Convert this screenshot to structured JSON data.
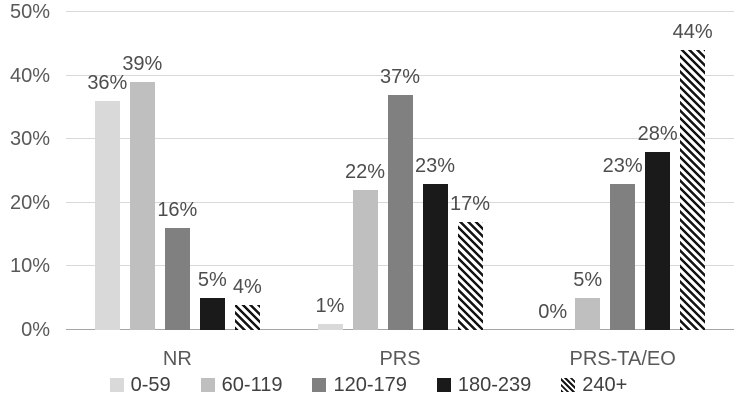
{
  "chart_data": {
    "type": "bar",
    "title": "",
    "categories": [
      "NR",
      "PRS",
      "PRS-TA/EO"
    ],
    "series": [
      {
        "name": "0-59",
        "color": "#d9d9d9",
        "pattern": "solid",
        "values": [
          36,
          1,
          0
        ]
      },
      {
        "name": "60-119",
        "color": "#bfbfbf",
        "pattern": "solid",
        "values": [
          39,
          22,
          5
        ]
      },
      {
        "name": "120-179",
        "color": "#808080",
        "pattern": "solid",
        "values": [
          16,
          37,
          23
        ]
      },
      {
        "name": "180-239",
        "color": "#1a1a1a",
        "pattern": "solid",
        "values": [
          5,
          23,
          28
        ]
      },
      {
        "name": "240+",
        "color": "#141414",
        "pattern": "diagonal-stripe",
        "values": [
          4,
          17,
          44
        ]
      }
    ],
    "data_labels": true,
    "data_label_suffix": "%",
    "xlabel": "",
    "ylabel": "",
    "ylim": [
      0,
      50
    ],
    "yticks": [
      "0%",
      "10%",
      "20%",
      "30%",
      "40%",
      "50%"
    ],
    "grid": true,
    "legend_position": "bottom",
    "colors": {
      "gridline": "#d9d9d9",
      "axis_line": "#a6a6a6",
      "tick_label": "#595959",
      "data_label": "#4d4d4d",
      "category_label": "#595959",
      "legend_label": "#404040",
      "background": "#ffffff",
      "hatch_foreground": "#141414",
      "hatch_background": "#ffffff"
    }
  }
}
